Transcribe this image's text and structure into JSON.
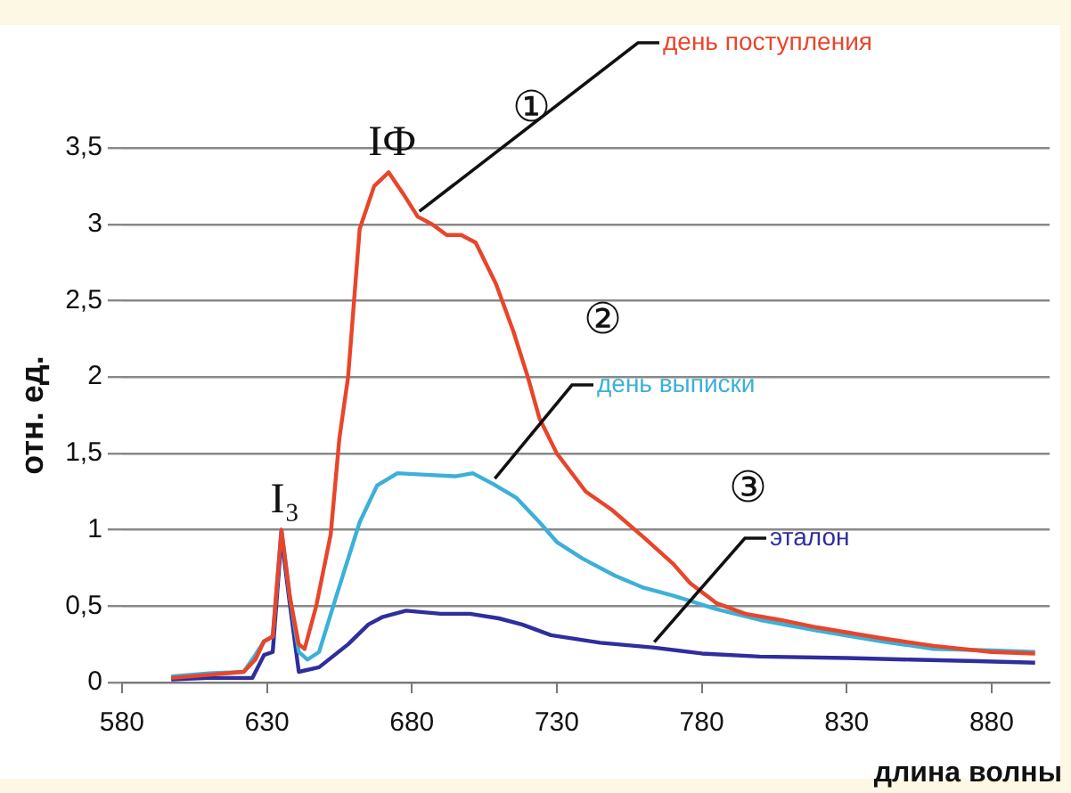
{
  "chart_data": {
    "type": "line",
    "xlabel": "длина волны",
    "ylabel": "отн. ед.",
    "xlim": [
      580,
      900
    ],
    "xticks": [
      580,
      630,
      680,
      730,
      780,
      830,
      880
    ],
    "ylim": [
      0,
      3.5
    ],
    "yticks": [
      0,
      {
        "value": 0.5,
        "label": "0,5"
      },
      1,
      {
        "value": 1.5,
        "label": "1,5"
      },
      2,
      {
        "value": 2.5,
        "label": "2,5"
      },
      3,
      {
        "value": 3.5,
        "label": "3,5"
      }
    ],
    "grid": "y",
    "legend": false,
    "marker": "none",
    "line_style": "solid",
    "series": [
      {
        "name": "день поступления",
        "color": "#e8452a",
        "x": [
          597,
          610,
          622,
          626,
          629,
          632,
          635,
          638,
          641,
          643,
          647,
          652,
          655,
          658,
          662,
          667,
          672,
          677,
          682,
          687,
          692,
          697,
          702,
          709,
          715,
          720,
          724,
          730,
          740,
          749,
          760,
          770,
          776,
          785,
          795,
          807,
          820,
          842,
          860,
          880,
          895
        ],
        "values": [
          0.03,
          0.05,
          0.07,
          0.15,
          0.27,
          0.3,
          1.0,
          0.55,
          0.25,
          0.22,
          0.5,
          0.97,
          1.6,
          2.0,
          2.97,
          3.25,
          3.34,
          3.2,
          3.05,
          3.0,
          2.93,
          2.93,
          2.88,
          2.61,
          2.3,
          2.0,
          1.73,
          1.5,
          1.25,
          1.13,
          0.95,
          0.78,
          0.65,
          0.52,
          0.45,
          0.41,
          0.36,
          0.29,
          0.24,
          0.2,
          0.19
        ]
      },
      {
        "name": "день выписки",
        "color": "#3cb0d8",
        "x": [
          597,
          610,
          622,
          626,
          629,
          632,
          635,
          638,
          641,
          644,
          648,
          654,
          662,
          668,
          675,
          685,
          695,
          701,
          708,
          716,
          724,
          730,
          739,
          750,
          760,
          770,
          785,
          800,
          820,
          842,
          860,
          880,
          895
        ],
        "values": [
          0.04,
          0.06,
          0.07,
          0.18,
          0.27,
          0.3,
          1.0,
          0.55,
          0.2,
          0.15,
          0.2,
          0.57,
          1.05,
          1.29,
          1.37,
          1.36,
          1.35,
          1.37,
          1.3,
          1.21,
          1.05,
          0.92,
          0.81,
          0.7,
          0.62,
          0.57,
          0.48,
          0.41,
          0.34,
          0.27,
          0.22,
          0.21,
          0.2
        ]
      },
      {
        "name": "эталон",
        "color": "#2e2e9e",
        "x": [
          597,
          610,
          625,
          629,
          632,
          635,
          638,
          641,
          648,
          658,
          665,
          670,
          678,
          690,
          700,
          710,
          718,
          728,
          745,
          763,
          780,
          800,
          830,
          852,
          875,
          895
        ],
        "values": [
          0.02,
          0.03,
          0.03,
          0.18,
          0.2,
          0.95,
          0.5,
          0.07,
          0.1,
          0.25,
          0.38,
          0.43,
          0.47,
          0.45,
          0.45,
          0.42,
          0.38,
          0.31,
          0.26,
          0.23,
          0.19,
          0.17,
          0.16,
          0.15,
          0.14,
          0.13
        ]
      }
    ],
    "annotations": [
      {
        "text": "IФ",
        "x": 672,
        "y": 3.34
      },
      {
        "text": "I₃",
        "x": 635,
        "y": 1.0
      },
      {
        "text": "①",
        "x": 682,
        "y": 3.05
      },
      {
        "text": "②",
        "x": 708,
        "y": 1.3
      },
      {
        "text": "③",
        "x": 763,
        "y": 0.23
      }
    ]
  }
}
